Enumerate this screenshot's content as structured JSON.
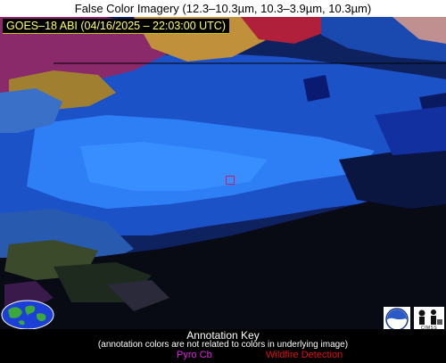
{
  "header": {
    "title": "False Color Imagery (12.3–10.3µm, 10.3–3.9µm, 10.3µm)"
  },
  "imagery": {
    "subtitle": "GOES–18 ABI (04/16/2025 – 22:03:00 UTC)",
    "colors": {
      "dark_blue": "#0b2a8c",
      "mid_blue": "#1a55d0",
      "bright_blue": "#2f7cf5",
      "navy": "#102050",
      "black": "#000000",
      "red": "#b0203a",
      "magenta": "#8a2a6a",
      "gold": "#c0903a",
      "olive": "#3a4a2a",
      "marker": "#d0186a"
    }
  },
  "annotation_key": {
    "title": "Annotation Key",
    "note": "(annotation colors are not related to colors in underlying image)",
    "items": [
      {
        "label": "Pyro Cb",
        "color": "#e020e0"
      },
      {
        "label": "Wildfire Detection",
        "color": "#e01010"
      }
    ]
  },
  "logos": {
    "globe": "globe-icon",
    "noaa": "noaa-logo-icon",
    "cimss": "cimss-logo-icon",
    "cimss_label": "CIMSS"
  }
}
